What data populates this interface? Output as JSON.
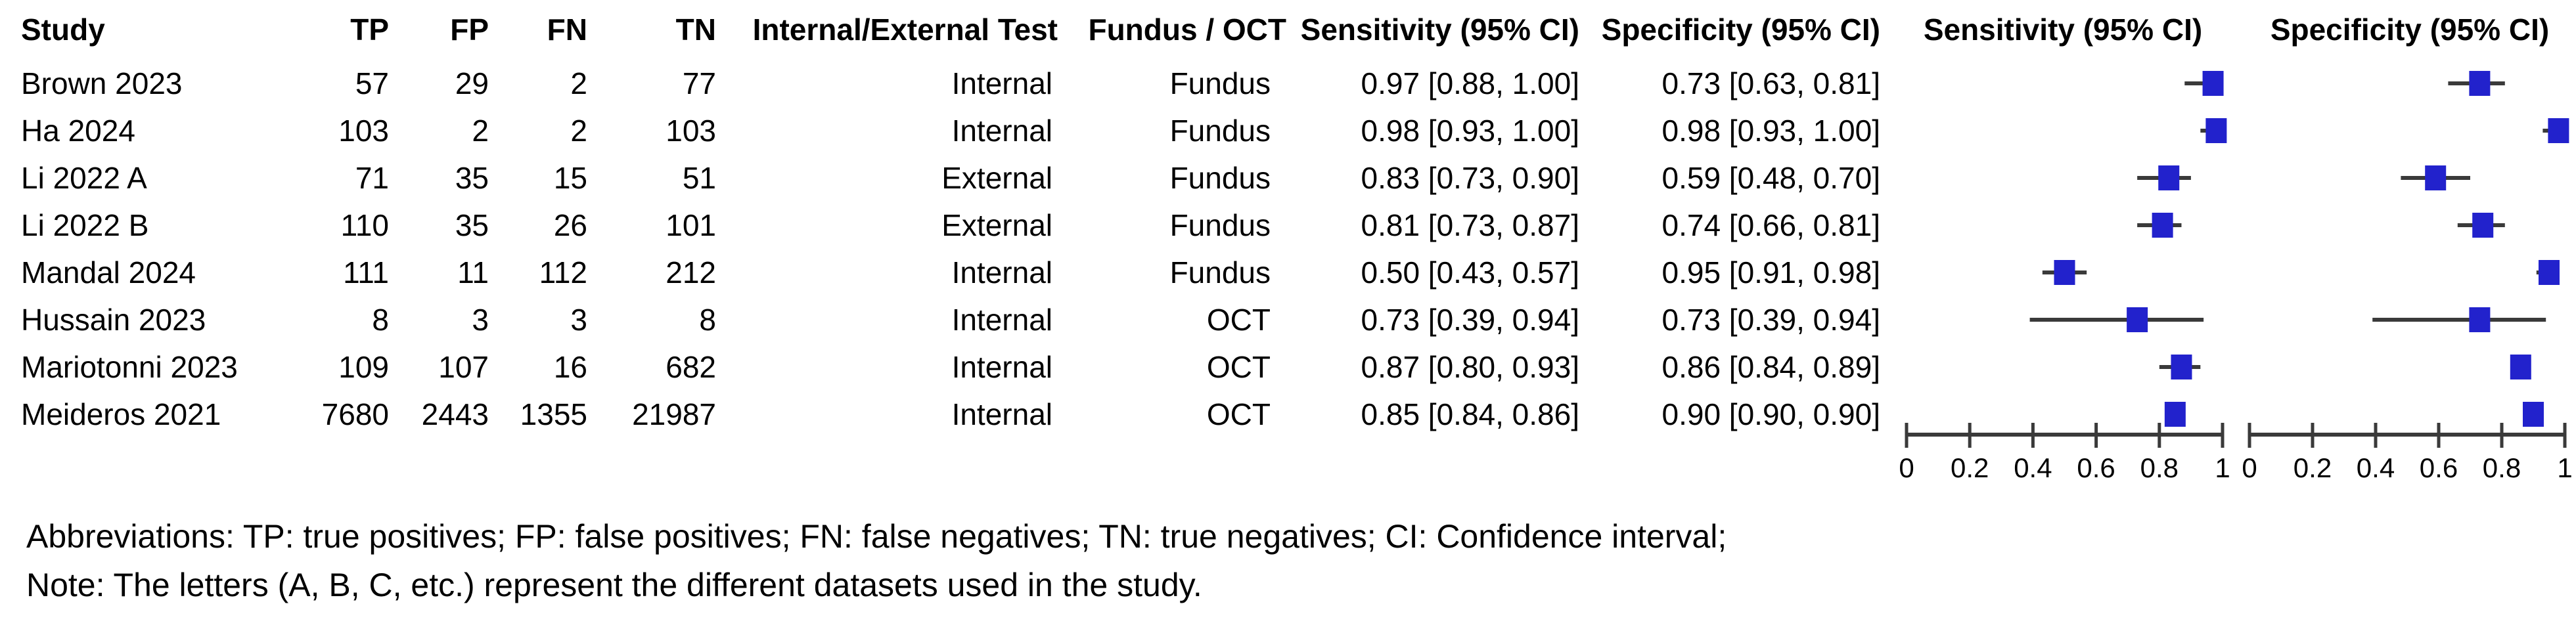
{
  "table": {
    "headers": {
      "study": "Study",
      "tp": "TP",
      "fp": "FP",
      "fn": "FN",
      "tn": "TN",
      "test": "Internal/External Test",
      "modality": "Fundus / OCT",
      "sens": "Sensitivity (95% CI)",
      "spec": "Specificity (95% CI)"
    },
    "plot_headers": {
      "sens": "Sensitivity (95% CI)",
      "spec": "Specificity (95% CI)"
    }
  },
  "rows": [
    {
      "study": "Brown 2023",
      "tp": "57",
      "fp": "29",
      "fn": "2",
      "tn": "77",
      "test": "Internal",
      "modality": "Fundus",
      "sens_text": "0.97 [0.88, 1.00]",
      "spec_text": "0.73 [0.63, 0.81]"
    },
    {
      "study": "Ha 2024",
      "tp": "103",
      "fp": "2",
      "fn": "2",
      "tn": "103",
      "test": "Internal",
      "modality": "Fundus",
      "sens_text": "0.98 [0.93, 1.00]",
      "spec_text": "0.98 [0.93, 1.00]"
    },
    {
      "study": "Li 2022 A",
      "tp": "71",
      "fp": "35",
      "fn": "15",
      "tn": "51",
      "test": "External",
      "modality": "Fundus",
      "sens_text": "0.83 [0.73, 0.90]",
      "spec_text": "0.59 [0.48, 0.70]"
    },
    {
      "study": "Li 2022 B",
      "tp": "110",
      "fp": "35",
      "fn": "26",
      "tn": "101",
      "test": "External",
      "modality": "Fundus",
      "sens_text": "0.81 [0.73, 0.87]",
      "spec_text": "0.74 [0.66, 0.81]"
    },
    {
      "study": "Mandal 2024",
      "tp": "111",
      "fp": "11",
      "fn": "112",
      "tn": "212",
      "test": "Internal",
      "modality": "Fundus",
      "sens_text": "0.50 [0.43, 0.57]",
      "spec_text": "0.95 [0.91, 0.98]"
    },
    {
      "study": "Hussain 2023",
      "tp": "8",
      "fp": "3",
      "fn": "3",
      "tn": "8",
      "test": "Internal",
      "modality": "OCT",
      "sens_text": "0.73 [0.39, 0.94]",
      "spec_text": "0.73 [0.39, 0.94]"
    },
    {
      "study": "Mariotonni 2023",
      "tp": "109",
      "fp": "107",
      "fn": "16",
      "tn": "682",
      "test": "Internal",
      "modality": "OCT",
      "sens_text": "0.87 [0.80, 0.93]",
      "spec_text": "0.86 [0.84, 0.89]"
    },
    {
      "study": "Meideros 2021",
      "tp": "7680",
      "fp": "2443",
      "fn": "1355",
      "tn": "21987",
      "test": "Internal",
      "modality": "OCT",
      "sens_text": "0.85 [0.84, 0.86]",
      "spec_text": "0.90 [0.90, 0.90]"
    }
  ],
  "footnotes": {
    "abbreviations": "Abbreviations: TP: true positives; FP: false positives; FN: false negatives; TN: true negatives; CI: Confidence interval;",
    "note": "Note: The letters (A, B, C, etc.) represent the different datasets used in the study."
  },
  "colors": {
    "marker_blue": "#2222CC",
    "line_gray": "#3a3a3a",
    "text_black": "#000000"
  },
  "chart_data": [
    {
      "type": "forest",
      "title": "Sensitivity (95% CI)",
      "categories": [
        "Brown 2023",
        "Ha 2024",
        "Li 2022 A",
        "Li 2022 B",
        "Mandal 2024",
        "Hussain 2023",
        "Mariotonni 2023",
        "Meideros 2021"
      ],
      "estimates": [
        0.97,
        0.98,
        0.83,
        0.81,
        0.5,
        0.73,
        0.87,
        0.85
      ],
      "ci_low": [
        0.88,
        0.93,
        0.73,
        0.73,
        0.43,
        0.39,
        0.8,
        0.84
      ],
      "ci_high": [
        1.0,
        1.0,
        0.9,
        0.87,
        0.57,
        0.94,
        0.93,
        0.86
      ],
      "xlim": [
        0,
        1
      ],
      "x_ticks": [
        0,
        0.2,
        0.4,
        0.6,
        0.8,
        1
      ],
      "grid": false,
      "legend": "none"
    },
    {
      "type": "forest",
      "title": "Specificity (95% CI)",
      "categories": [
        "Brown 2023",
        "Ha 2024",
        "Li 2022 A",
        "Li 2022 B",
        "Mandal 2024",
        "Hussain 2023",
        "Mariotonni 2023",
        "Meideros 2021"
      ],
      "estimates": [
        0.73,
        0.98,
        0.59,
        0.74,
        0.95,
        0.73,
        0.86,
        0.9
      ],
      "ci_low": [
        0.63,
        0.93,
        0.48,
        0.66,
        0.91,
        0.39,
        0.84,
        0.9
      ],
      "ci_high": [
        0.81,
        1.0,
        0.7,
        0.81,
        0.98,
        0.94,
        0.89,
        0.9
      ],
      "xlim": [
        0,
        1
      ],
      "x_ticks": [
        0,
        0.2,
        0.4,
        0.6,
        0.8,
        1
      ],
      "grid": false,
      "legend": "none"
    }
  ]
}
